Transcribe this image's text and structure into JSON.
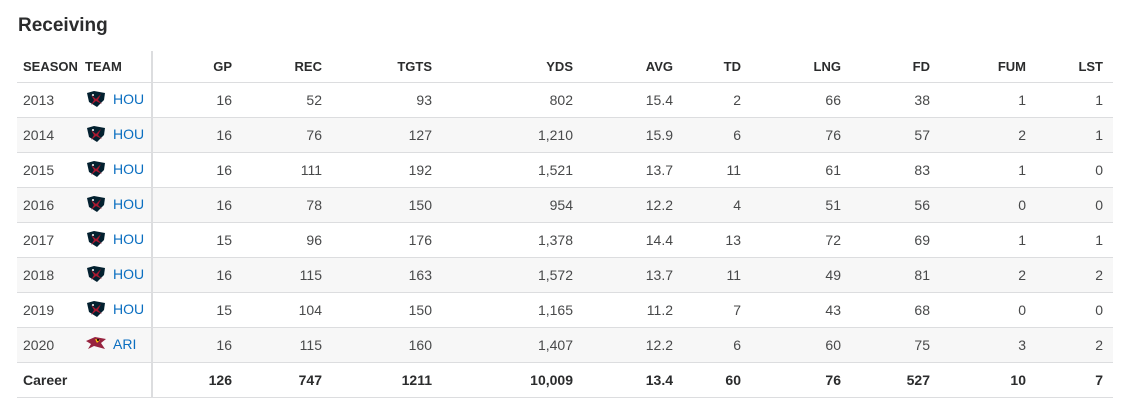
{
  "section_title": "Receiving",
  "columns": [
    "SEASON",
    "TEAM",
    "GP",
    "REC",
    "TGTS",
    "YDS",
    "AVG",
    "TD",
    "LNG",
    "FD",
    "FUM",
    "LST"
  ],
  "rows": [
    {
      "season": "2013",
      "team": "HOU",
      "team_logo": "texans-logo-icon",
      "gp": "16",
      "rec": "52",
      "tgts": "93",
      "yds": "802",
      "avg": "15.4",
      "td": "2",
      "lng": "66",
      "fd": "38",
      "fum": "1",
      "lst": "1"
    },
    {
      "season": "2014",
      "team": "HOU",
      "team_logo": "texans-logo-icon",
      "gp": "16",
      "rec": "76",
      "tgts": "127",
      "yds": "1,210",
      "avg": "15.9",
      "td": "6",
      "lng": "76",
      "fd": "57",
      "fum": "2",
      "lst": "1"
    },
    {
      "season": "2015",
      "team": "HOU",
      "team_logo": "texans-logo-icon",
      "gp": "16",
      "rec": "111",
      "tgts": "192",
      "yds": "1,521",
      "avg": "13.7",
      "td": "11",
      "lng": "61",
      "fd": "83",
      "fum": "1",
      "lst": "0"
    },
    {
      "season": "2016",
      "team": "HOU",
      "team_logo": "texans-logo-icon",
      "gp": "16",
      "rec": "78",
      "tgts": "150",
      "yds": "954",
      "avg": "12.2",
      "td": "4",
      "lng": "51",
      "fd": "56",
      "fum": "0",
      "lst": "0"
    },
    {
      "season": "2017",
      "team": "HOU",
      "team_logo": "texans-logo-icon",
      "gp": "15",
      "rec": "96",
      "tgts": "176",
      "yds": "1,378",
      "avg": "14.4",
      "td": "13",
      "lng": "72",
      "fd": "69",
      "fum": "1",
      "lst": "1"
    },
    {
      "season": "2018",
      "team": "HOU",
      "team_logo": "texans-logo-icon",
      "gp": "16",
      "rec": "115",
      "tgts": "163",
      "yds": "1,572",
      "avg": "13.7",
      "td": "11",
      "lng": "49",
      "fd": "81",
      "fum": "2",
      "lst": "2"
    },
    {
      "season": "2019",
      "team": "HOU",
      "team_logo": "texans-logo-icon",
      "gp": "15",
      "rec": "104",
      "tgts": "150",
      "yds": "1,165",
      "avg": "11.2",
      "td": "7",
      "lng": "43",
      "fd": "68",
      "fum": "0",
      "lst": "0"
    },
    {
      "season": "2020",
      "team": "ARI",
      "team_logo": "cardinals-logo-icon",
      "gp": "16",
      "rec": "115",
      "tgts": "160",
      "yds": "1,407",
      "avg": "12.2",
      "td": "6",
      "lng": "60",
      "fd": "75",
      "fum": "3",
      "lst": "2"
    }
  ],
  "career": {
    "label": "Career",
    "gp": "126",
    "rec": "747",
    "tgts": "1211",
    "yds": "10,009",
    "avg": "13.4",
    "td": "60",
    "lng": "76",
    "fd": "527",
    "fum": "10",
    "lst": "7"
  },
  "colors": {
    "link": "#0a6ec0",
    "row_alt": "#f7f7f7",
    "texans_navy": "#03202f",
    "texans_red": "#a71930",
    "cardinals_red": "#97233f"
  }
}
